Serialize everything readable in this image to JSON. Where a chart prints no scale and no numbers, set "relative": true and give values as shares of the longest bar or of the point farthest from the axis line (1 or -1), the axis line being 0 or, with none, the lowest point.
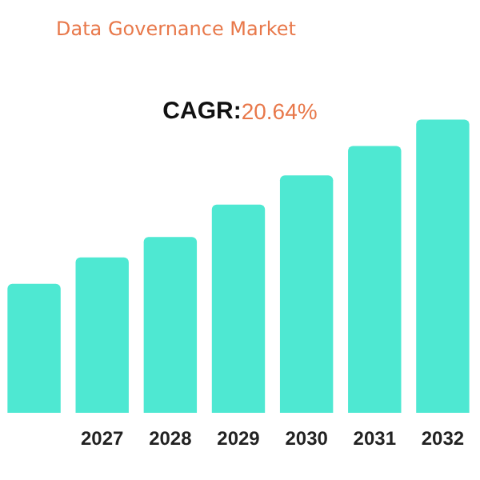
{
  "chart_data": {
    "type": "bar",
    "title": "Data Governance Market",
    "annotations": [
      "CAGR:20.64%"
    ],
    "categories": [
      null,
      "2027",
      "2028",
      "2029",
      "2030",
      "2031",
      "2032"
    ],
    "values": [
      0.44,
      0.53,
      0.6,
      0.71,
      0.81,
      0.91,
      1
    ],
    "color": "#4ee8d2",
    "relative": true
  }
}
